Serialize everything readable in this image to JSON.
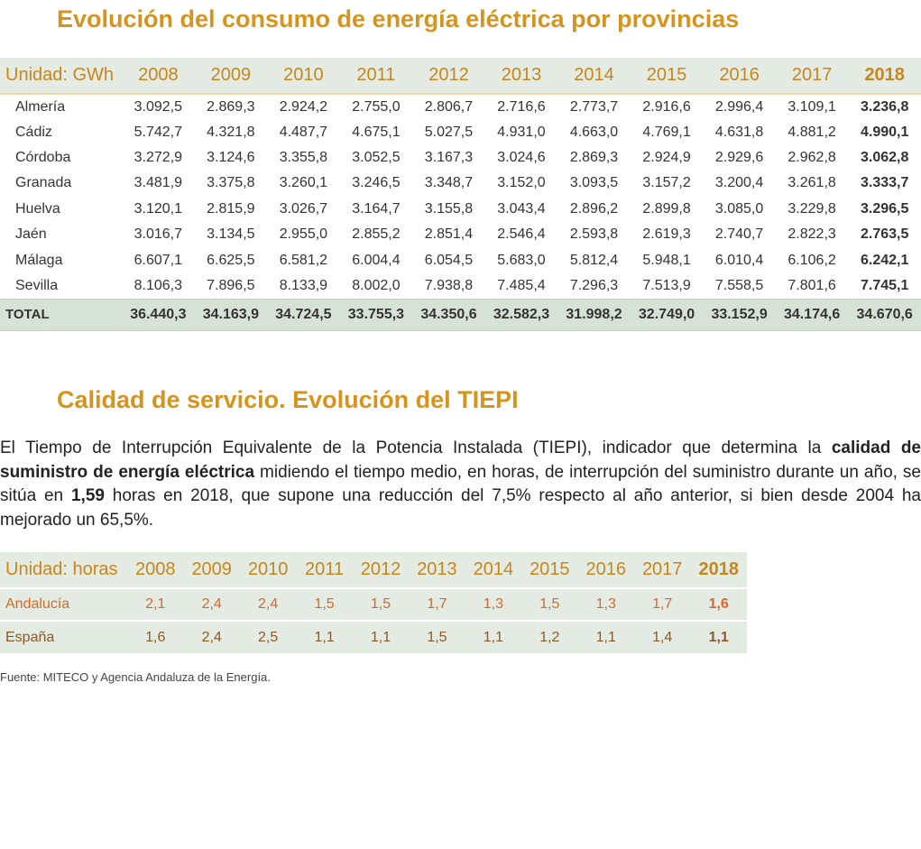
{
  "consumo": {
    "title": "Evolución del consumo de energía eléctrica por provincias",
    "unit_label": "Unidad: GWh",
    "years": [
      "2008",
      "2009",
      "2010",
      "2011",
      "2012",
      "2013",
      "2014",
      "2015",
      "2016",
      "2017",
      "2018"
    ],
    "rows": [
      {
        "name": "Almería",
        "values": [
          "3.092,5",
          "2.869,3",
          "2.924,2",
          "2.755,0",
          "2.806,7",
          "2.716,6",
          "2.773,7",
          "2.916,6",
          "2.996,4",
          "3.109,1",
          "3.236,8"
        ]
      },
      {
        "name": "Cádiz",
        "values": [
          "5.742,7",
          "4.321,8",
          "4.487,7",
          "4.675,1",
          "5.027,5",
          "4.931,0",
          "4.663,0",
          "4.769,1",
          "4.631,8",
          "4.881,2",
          "4.990,1"
        ]
      },
      {
        "name": "Córdoba",
        "values": [
          "3.272,9",
          "3.124,6",
          "3.355,8",
          "3.052,5",
          "3.167,3",
          "3.024,6",
          "2.869,3",
          "2.924,9",
          "2.929,6",
          "2.962,8",
          "3.062,8"
        ]
      },
      {
        "name": "Granada",
        "values": [
          "3.481,9",
          "3.375,8",
          "3.260,1",
          "3.246,5",
          "3.348,7",
          "3.152,0",
          "3.093,5",
          "3.157,2",
          "3.200,4",
          "3.261,8",
          "3.333,7"
        ]
      },
      {
        "name": "Huelva",
        "values": [
          "3.120,1",
          "2.815,9",
          "3.026,7",
          "3.164,7",
          "3.155,8",
          "3.043,4",
          "2.896,2",
          "2.899,8",
          "3.085,0",
          "3.229,8",
          "3.296,5"
        ]
      },
      {
        "name": "Jaén",
        "values": [
          "3.016,7",
          "3.134,5",
          "2.955,0",
          "2.855,2",
          "2.851,4",
          "2.546,4",
          "2.593,8",
          "2.619,3",
          "2.740,7",
          "2.822,3",
          "2.763,5"
        ]
      },
      {
        "name": "Málaga",
        "values": [
          "6.607,1",
          "6.625,5",
          "6.581,2",
          "6.004,4",
          "6.054,5",
          "5.683,0",
          "5.812,4",
          "5.948,1",
          "6.010,4",
          "6.106,2",
          "6.242,1"
        ]
      },
      {
        "name": "Sevilla",
        "values": [
          "8.106,3",
          "7.896,5",
          "8.133,9",
          "8.002,0",
          "7.938,8",
          "7.485,4",
          "7.296,3",
          "7.513,9",
          "7.558,5",
          "7.801,6",
          "7.745,1"
        ]
      }
    ],
    "total": {
      "name": "TOTAL",
      "values": [
        "36.440,3",
        "34.163,9",
        "34.724,5",
        "33.755,3",
        "34.350,6",
        "32.582,3",
        "31.998,2",
        "32.749,0",
        "33.152,9",
        "34.174,6",
        "34.670,6"
      ]
    }
  },
  "tiepi": {
    "title": "Calidad de servicio. Evolución del TIEPI",
    "paragraph": {
      "p1": "El Tiempo de Interrupción Equivalente de la Potencia Instalada (TIEPI), indicador que determina la ",
      "b1": "calidad de suministro de energía eléctrica",
      "p2": " midiendo el tiempo medio, en horas, de interrupción del suministro durante un año, se sitúa en ",
      "b2": "1,59",
      "p3": " horas en 2018, que supone una reducción del 7,5% respecto al año anterior, si bien desde 2004 ha mejorado un 65,5%."
    },
    "unit_label": "Unidad: horas",
    "years": [
      "2008",
      "2009",
      "2010",
      "2011",
      "2012",
      "2013",
      "2014",
      "2015",
      "2016",
      "2017",
      "2018"
    ],
    "rows": [
      {
        "name": "Andalucía",
        "values": [
          "2,1",
          "2,4",
          "2,4",
          "1,5",
          "1,5",
          "1,7",
          "1,3",
          "1,5",
          "1,3",
          "1,7",
          "1,6"
        ]
      },
      {
        "name": "España",
        "values": [
          "1,6",
          "2,4",
          "2,5",
          "1,1",
          "1,1",
          "1,5",
          "1,1",
          "1,2",
          "1,1",
          "1,4",
          "1,1"
        ]
      }
    ]
  },
  "source": "Fuente: MITECO y Agencia Andaluza de la Energía.",
  "colors": {
    "title": "#d4941e",
    "header_text": "#c9861c",
    "header_bg": "#e3ebe2",
    "total_bg": "#d7e2d6",
    "andalucia_text": "#d8692a",
    "espana_text": "#8a5a2b"
  }
}
